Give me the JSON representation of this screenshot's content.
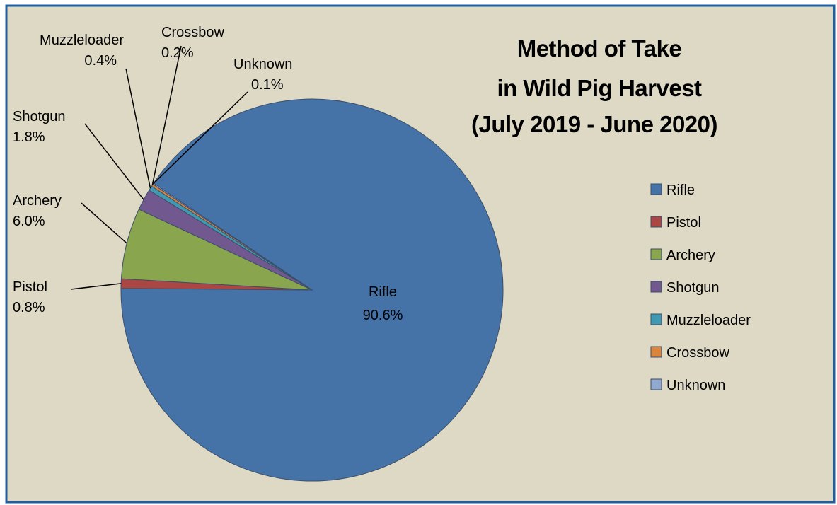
{
  "chart_data": {
    "type": "pie",
    "title_lines": [
      "Method of Take",
      "in Wild Pig Harvest",
      "(July 2019 - June 2020)"
    ],
    "slices": [
      {
        "label": "Rifle",
        "value": 90.6,
        "display": "90.6%",
        "color": "#4572a7"
      },
      {
        "label": "Pistol",
        "value": 0.8,
        "display": "0.8%",
        "color": "#aa4643"
      },
      {
        "label": "Archery",
        "value": 6.0,
        "display": "6.0%",
        "color": "#89a54e"
      },
      {
        "label": "Shotgun",
        "value": 1.8,
        "display": "1.8%",
        "color": "#71588f"
      },
      {
        "label": "Muzzleloader",
        "value": 0.4,
        "display": "0.4%",
        "color": "#4198af"
      },
      {
        "label": "Crossbow",
        "value": 0.2,
        "display": "0.2%",
        "color": "#db843d"
      },
      {
        "label": "Unknown",
        "value": 0.1,
        "display": "0.1%",
        "color": "#93a9cf"
      }
    ],
    "legend_position": "right",
    "background_color": "#ded9c4",
    "border_color": "#1f5f9e"
  }
}
